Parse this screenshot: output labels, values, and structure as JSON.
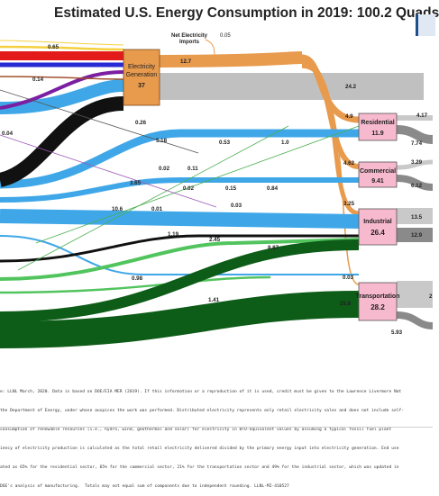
{
  "title": "Estimated U.S. Energy Consumption in 2019: 100.2 Quads",
  "net_electricity_imports": {
    "label_line1": "Net Electricity",
    "label_line2": "Imports",
    "value": "0.05"
  },
  "nodes": {
    "electricity": {
      "name_line1": "Electricity",
      "name_line2": "Generation",
      "value": "37",
      "color": "#e89a4d"
    },
    "residential": {
      "name": "Residential",
      "value": "11.9"
    },
    "commercial": {
      "name": "Commercial",
      "value": "9.41"
    },
    "industrial": {
      "name": "Industrial",
      "value": "26.4"
    },
    "transportation": {
      "name": "Transportation",
      "value": "28.2"
    },
    "sector_color": "#f7b9cd"
  },
  "flow_labels": [
    "0.65",
    "12.7",
    "24.2",
    "0.14",
    "0.26",
    "4.9",
    "4.17",
    "5.18",
    "0.53",
    "1.0",
    "7.74",
    "4.62",
    "0.04",
    "0.02",
    "0.11",
    "3.29",
    "3.65",
    "0.02",
    "0.15",
    "0.84",
    "6.12",
    "10.6",
    "0.01",
    "0.03",
    "3.25",
    "13.5",
    "1.19",
    "2.45",
    "12.9",
    "8.87",
    "0.98",
    "0.03",
    "1.41",
    "25.8",
    "2",
    "5.93"
  ],
  "footnote": [
    "e: LLNL March, 2020. Data is based on DOE/EIA MER (2019). If this information or a reproduction of it is used, credit must be given to the Lawrence Livermore Nat",
    "the Department of Energy, under whose auspices the work was performed. Distributed electricity represents only retail electricity sales and does not include self-",
    "consumption of renewable resources (i.e., hydro, wind, geothermal and solar) for electricity in BTU-equivalent values by assuming a typical fossil fuel plant",
    "iency of electricity production is calculated as the total retail electricity delivered divided by the primary energy input into electricity generation. End use",
    "ated as 65% for the residential sector, 65% for the commercial sector, 21% for the transportation sector and 49% for the industrial sector, which was updated in",
    "DOE's analysis of manufacturing.  Totals may not equal sum of components due to independent rounding. LLNL-MI-410527"
  ],
  "colors": {
    "electric": "#e89a4d",
    "rejected": "#c0c0c0",
    "services": "#8a8a8a",
    "gas": "#3fa7e8",
    "coal": "#111111",
    "petroleum": "#0d5c17",
    "biomass": "#52c45e",
    "nuclear": "#e31b1b",
    "hydro": "#2a2ad4",
    "wind": "#7b1fa2"
  }
}
